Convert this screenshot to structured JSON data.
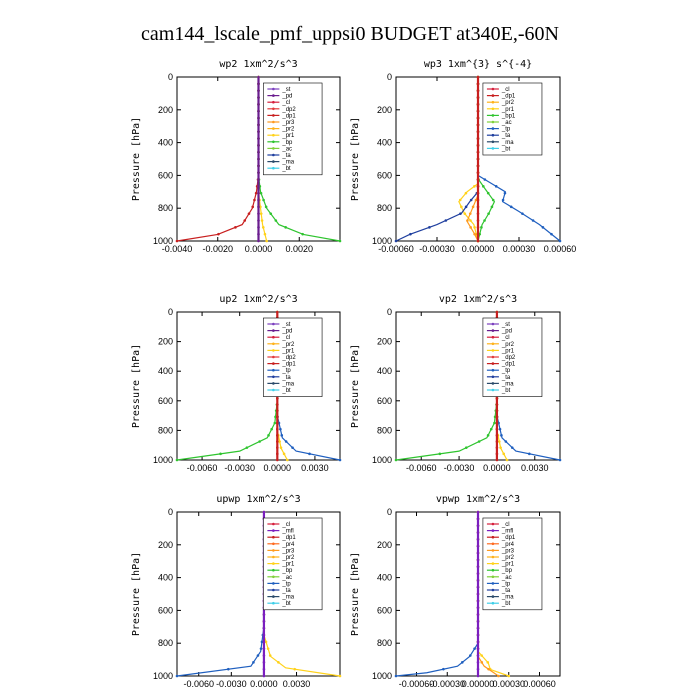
{
  "title": "cam144_lscale_pmf_uppsi0  BUDGET at340E,-60N",
  "colors": {
    "st": "#7b3fbf",
    "pd": "#6a1d8f",
    "cl": "#d61f3c",
    "dp2": "#e23b3b",
    "dp1": "#c81f1f",
    "pr3": "#ff9a1f",
    "pr2": "#ffb21a",
    "pr1": "#ffd21a",
    "pr4": "#ff6a1f",
    "bp": "#2fc42f",
    "ac": "#7fd13a",
    "tp": "#1f5fbf",
    "ta": "#1f3f9f",
    "ma": "#2a4a6a",
    "bt": "#3fcfe8",
    "mfl": "#7b1fbf"
  },
  "chart_data": [
    {
      "type": "line",
      "title": "wp2  1xm^2/s^3",
      "ylabel": "Pressure [hPa]",
      "ylim": [
        1000,
        0
      ],
      "xlim": [
        -0.004,
        0.004
      ],
      "xticks": [
        "-0.0040",
        "-0.0020",
        "0.0000",
        "0.0020"
      ],
      "xtick_values": [
        -0.004,
        -0.002,
        0.0,
        0.002
      ],
      "yticks": [
        "0",
        "200",
        "400",
        "600",
        "800",
        "1000"
      ],
      "legend_position": "top-right",
      "legend": [
        "_st",
        "_pd",
        "_cl",
        "_dp2",
        "_dp1",
        "_pr3",
        "_pr2",
        "_pr1",
        "_bp",
        "_ac",
        "_ta",
        "_ma",
        "_bt"
      ],
      "series": [
        {
          "name": "_dp1",
          "color": "#c81f1f",
          "points": [
            [
              0,
              0
            ],
            [
              0,
              400
            ],
            [
              0,
              600
            ],
            [
              -0.0001,
              700
            ],
            [
              -0.0003,
              800
            ],
            [
              -0.0008,
              900
            ],
            [
              -0.002,
              960
            ],
            [
              -0.004,
              1000
            ]
          ]
        },
        {
          "name": "_bp",
          "color": "#2fc42f",
          "points": [
            [
              0,
              0
            ],
            [
              0,
              400
            ],
            [
              0,
              600
            ],
            [
              0.0001,
              700
            ],
            [
              0.0004,
              800
            ],
            [
              0.001,
              900
            ],
            [
              0.0022,
              960
            ],
            [
              0.004,
              1000
            ]
          ]
        },
        {
          "name": "_pr1",
          "color": "#ffd21a",
          "points": [
            [
              0,
              0
            ],
            [
              0,
              700
            ],
            [
              0.0001,
              800
            ],
            [
              0.0002,
              900
            ],
            [
              0.0004,
              1000
            ]
          ]
        },
        {
          "name": "_pd",
          "color": "#6a1d8f",
          "points": [
            [
              0,
              0
            ],
            [
              0,
              1000
            ]
          ]
        }
      ]
    },
    {
      "type": "line",
      "title": "wp3  1xm^{3} s^{-4}",
      "ylabel": "Pressure [hPa]",
      "ylim": [
        1000,
        0
      ],
      "xlim": [
        -0.0006,
        0.0006
      ],
      "xticks": [
        "-0.00060",
        "-0.00030",
        "0.00000",
        "0.00030",
        "0.00060"
      ],
      "xtick_values": [
        -0.0006,
        -0.0003,
        0.0,
        0.0003,
        0.0006
      ],
      "yticks": [
        "0",
        "200",
        "400",
        "600",
        "800",
        "1000"
      ],
      "legend_position": "top-right",
      "legend": [
        "_cl",
        "_dp1",
        "_pr2",
        "_pr1",
        "_bp1",
        "_ac",
        "_tp",
        "_ta",
        "_ma",
        "_bt"
      ],
      "series": [
        {
          "name": "_tp",
          "color": "#1f5fbf",
          "points": [
            [
              0,
              0
            ],
            [
              0,
              600
            ],
            [
              0.0001,
              650
            ],
            [
              0.0002,
              700
            ],
            [
              0.00018,
              760
            ],
            [
              0.0003,
              820
            ],
            [
              0.00045,
              900
            ],
            [
              0.0006,
              1000
            ]
          ]
        },
        {
          "name": "_bp1",
          "color": "#2fc42f",
          "points": [
            [
              0,
              0
            ],
            [
              0,
              620
            ],
            [
              5e-05,
              680
            ],
            [
              0.00012,
              760
            ],
            [
              8e-05,
              830
            ],
            [
              3e-05,
              900
            ],
            [
              0,
              1000
            ]
          ]
        },
        {
          "name": "_pr1",
          "color": "#ffd21a",
          "points": [
            [
              0,
              0
            ],
            [
              0,
              650
            ],
            [
              -8e-05,
              700
            ],
            [
              -0.00014,
              760
            ],
            [
              -0.0001,
              830
            ],
            [
              -3e-05,
              900
            ],
            [
              0,
              1000
            ]
          ]
        },
        {
          "name": "_ta",
          "color": "#1f3f9f",
          "points": [
            [
              0,
              0
            ],
            [
              0,
              700
            ],
            [
              -6e-05,
              760
            ],
            [
              -0.00012,
              830
            ],
            [
              -0.0003,
              900
            ],
            [
              -0.0005,
              960
            ],
            [
              -0.0006,
              1000
            ]
          ]
        },
        {
          "name": "_pr2",
          "color": "#ff9a1f",
          "points": [
            [
              0,
              0
            ],
            [
              0,
              720
            ],
            [
              -4e-05,
              800
            ],
            [
              -8e-05,
              880
            ],
            [
              -3e-05,
              950
            ],
            [
              0,
              1000
            ]
          ]
        },
        {
          "name": "_dp1",
          "color": "#c81f1f",
          "points": [
            [
              0,
              0
            ],
            [
              0,
              1000
            ]
          ]
        }
      ]
    },
    {
      "type": "line",
      "title": "up2  1xm^2/s^3",
      "ylabel": "Pressure [hPa]",
      "ylim": [
        1000,
        0
      ],
      "xlim": [
        -0.008,
        0.005
      ],
      "xticks": [
        "-0.0060",
        "-0.0030",
        "0.0000",
        "0.0030"
      ],
      "xtick_values": [
        -0.006,
        -0.003,
        0.0,
        0.003
      ],
      "yticks": [
        "0",
        "200",
        "400",
        "600",
        "800",
        "1000"
      ],
      "legend_position": "top-right",
      "legend": [
        "_st",
        "_pd",
        "_cl",
        "_pr2",
        "_pr1",
        "_dp2",
        "_dp1",
        "_tp",
        "_ta",
        "_ma",
        "_bt"
      ],
      "series": [
        {
          "name": "_dp1",
          "color": "#2fc42f",
          "points": [
            [
              0,
              0
            ],
            [
              0,
              600
            ],
            [
              -0.0002,
              750
            ],
            [
              -0.0008,
              850
            ],
            [
              -0.003,
              940
            ],
            [
              -0.008,
              1000
            ]
          ]
        },
        {
          "name": "_tp",
          "color": "#1f5fbf",
          "points": [
            [
              0,
              0
            ],
            [
              0,
              700
            ],
            [
              0.0004,
              850
            ],
            [
              0.0015,
              940
            ],
            [
              0.005,
              1000
            ]
          ]
        },
        {
          "name": "_pr1",
          "color": "#ffd21a",
          "points": [
            [
              0,
              0
            ],
            [
              0,
              800
            ],
            [
              0.0003,
              920
            ],
            [
              0.0008,
              1000
            ]
          ]
        },
        {
          "name": "_cl",
          "color": "#c81f1f",
          "points": [
            [
              0,
              0
            ],
            [
              0,
              1000
            ]
          ]
        }
      ]
    },
    {
      "type": "line",
      "title": "vp2  1xm^2/s^3",
      "ylabel": "Pressure [hPa]",
      "ylim": [
        1000,
        0
      ],
      "xlim": [
        -0.008,
        0.005
      ],
      "xticks": [
        "-0.0060",
        "-0.0030",
        "0.0000",
        "0.0030"
      ],
      "xtick_values": [
        -0.006,
        -0.003,
        0.0,
        0.003
      ],
      "yticks": [
        "0",
        "200",
        "400",
        "600",
        "800",
        "1000"
      ],
      "legend_position": "top-right",
      "legend": [
        "_st",
        "_pd",
        "_cl",
        "_pr2",
        "_pr1",
        "_dp2",
        "_dp1",
        "_tp",
        "_ta",
        "_ma",
        "_bt"
      ],
      "series": [
        {
          "name": "_dp1",
          "color": "#2fc42f",
          "points": [
            [
              0,
              0
            ],
            [
              0,
              600
            ],
            [
              -0.0002,
              750
            ],
            [
              -0.0008,
              850
            ],
            [
              -0.003,
              940
            ],
            [
              -0.008,
              1000
            ]
          ]
        },
        {
          "name": "_tp",
          "color": "#1f5fbf",
          "points": [
            [
              0,
              0
            ],
            [
              0,
              700
            ],
            [
              0.0004,
              850
            ],
            [
              0.0015,
              940
            ],
            [
              0.005,
              1000
            ]
          ]
        },
        {
          "name": "_pr1",
          "color": "#ffd21a",
          "points": [
            [
              0,
              0
            ],
            [
              0,
              800
            ],
            [
              0.0003,
              920
            ],
            [
              0.0008,
              1000
            ]
          ]
        },
        {
          "name": "_cl",
          "color": "#c81f1f",
          "points": [
            [
              0,
              0
            ],
            [
              0,
              1000
            ]
          ]
        }
      ]
    },
    {
      "type": "line",
      "title": "upwp  1xm^2/s^3",
      "ylabel": "Pressure [hPa]",
      "ylim": [
        1000,
        0
      ],
      "xlim": [
        -0.008,
        0.007
      ],
      "xticks": [
        "-0.0060",
        "-0.0030",
        "0.0000",
        "0.0030"
      ],
      "xtick_values": [
        -0.006,
        -0.003,
        0.0,
        0.003
      ],
      "yticks": [
        "0",
        "200",
        "400",
        "600",
        "800",
        "1000"
      ],
      "legend_position": "top-right",
      "legend": [
        "_cl",
        "_mfl",
        "_dp1",
        "_pr4",
        "_pr3",
        "_pr2",
        "_pr1",
        "_bp",
        "_ac",
        "_tp",
        "_ta",
        "_ma",
        "_bt"
      ],
      "series": [
        {
          "name": "_tp",
          "color": "#1f5fbf",
          "points": [
            [
              0,
              0
            ],
            [
              0,
              700
            ],
            [
              -0.0003,
              850
            ],
            [
              -0.0012,
              940
            ],
            [
              -0.008,
              1000
            ]
          ]
        },
        {
          "name": "_pr1",
          "color": "#ffd21a",
          "points": [
            [
              0,
              0
            ],
            [
              0,
              750
            ],
            [
              0.0006,
              880
            ],
            [
              0.002,
              950
            ],
            [
              0.007,
              1000
            ]
          ]
        },
        {
          "name": "_mfl",
          "color": "#7b1fbf",
          "points": [
            [
              0,
              0
            ],
            [
              0,
              1000
            ]
          ]
        }
      ]
    },
    {
      "type": "line",
      "title": "vpwp  1xm^2/s^3",
      "ylabel": "Pressure [hPa]",
      "ylim": [
        1000,
        0
      ],
      "xlim": [
        -0.0008,
        0.0008
      ],
      "xticks": [
        "-0.00060",
        "-0.00030",
        "0.00000",
        "0.00030",
        "0.00060"
      ],
      "xtick_values": [
        -0.0006,
        -0.0003,
        0.0,
        0.0003,
        0.0006
      ],
      "yticks": [
        "0",
        "200",
        "400",
        "600",
        "800",
        "1000"
      ],
      "legend_position": "top-right",
      "legend": [
        "_cl",
        "_mfl",
        "_dp1",
        "_pr4",
        "_pr3",
        "_pr2",
        "_pr1",
        "_bp",
        "_ac",
        "_tp",
        "_ta",
        "_ma",
        "_bt"
      ],
      "series": [
        {
          "name": "_tp",
          "color": "#1f5fbf",
          "points": [
            [
              0,
              0
            ],
            [
              0,
              800
            ],
            [
              -8e-05,
              880
            ],
            [
              -0.0002,
              940
            ],
            [
              -0.0005,
              980
            ],
            [
              -0.0008,
              1000
            ]
          ]
        },
        {
          "name": "_pr1",
          "color": "#ffd21a",
          "points": [
            [
              0,
              0
            ],
            [
              0,
              850
            ],
            [
              0.0001,
              920
            ],
            [
              0.00012,
              960
            ],
            [
              0.0003,
              1000
            ]
          ]
        },
        {
          "name": "_pr2",
          "color": "#ff9a1f",
          "points": [
            [
              0,
              0
            ],
            [
              0,
              880
            ],
            [
              6e-05,
              940
            ],
            [
              0.0002,
              1000
            ]
          ]
        },
        {
          "name": "_mfl",
          "color": "#7b1fbf",
          "points": [
            [
              0,
              0
            ],
            [
              0,
              1000
            ]
          ]
        }
      ]
    }
  ]
}
